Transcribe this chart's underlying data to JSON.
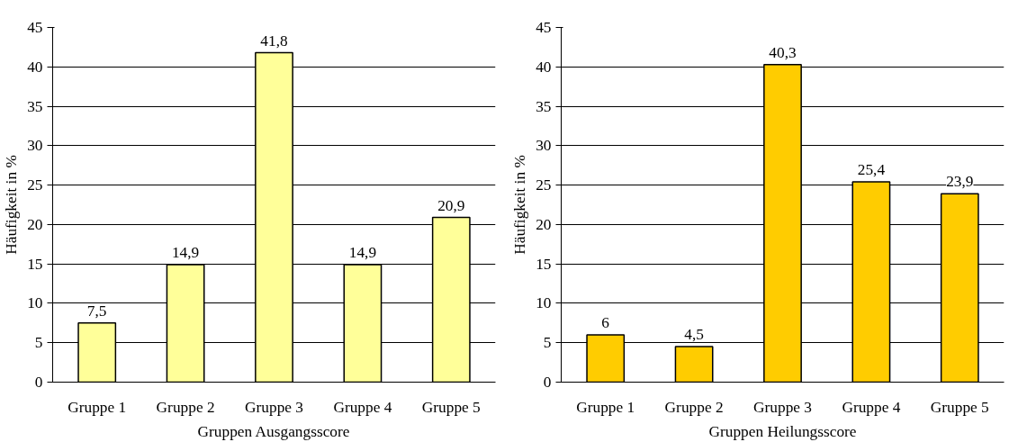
{
  "chart_data": [
    {
      "type": "bar",
      "xlabel": "Gruppen Ausgangsscore",
      "ylabel": "Häufigkeit in %",
      "categories": [
        "Gruppe 1",
        "Gruppe 2",
        "Gruppe 3",
        "Gruppe 4",
        "Gruppe 5"
      ],
      "values": [
        7.5,
        14.9,
        41.8,
        14.9,
        20.9
      ],
      "value_labels": [
        "7,5",
        "14,9",
        "41,8",
        "14,9",
        "20,9"
      ],
      "color": "#ffff99",
      "ylim": [
        0,
        45
      ],
      "yticks": [
        0,
        5,
        10,
        15,
        20,
        25,
        30,
        35,
        40,
        45
      ],
      "grid": "y"
    },
    {
      "type": "bar",
      "xlabel": "Gruppen Heilungsscore",
      "ylabel": "Häufigkeit in %",
      "categories": [
        "Gruppe 1",
        "Gruppe 2",
        "Gruppe 3",
        "Gruppe 4",
        "Gruppe 5"
      ],
      "values": [
        6,
        4.5,
        40.3,
        25.4,
        23.9
      ],
      "value_labels": [
        "6",
        "4,5",
        "40,3",
        "25,4",
        "23,9"
      ],
      "color": "#ffcc00",
      "ylim": [
        0,
        45
      ],
      "yticks": [
        0,
        5,
        10,
        15,
        20,
        25,
        30,
        35,
        40,
        45
      ],
      "grid": "y"
    }
  ]
}
